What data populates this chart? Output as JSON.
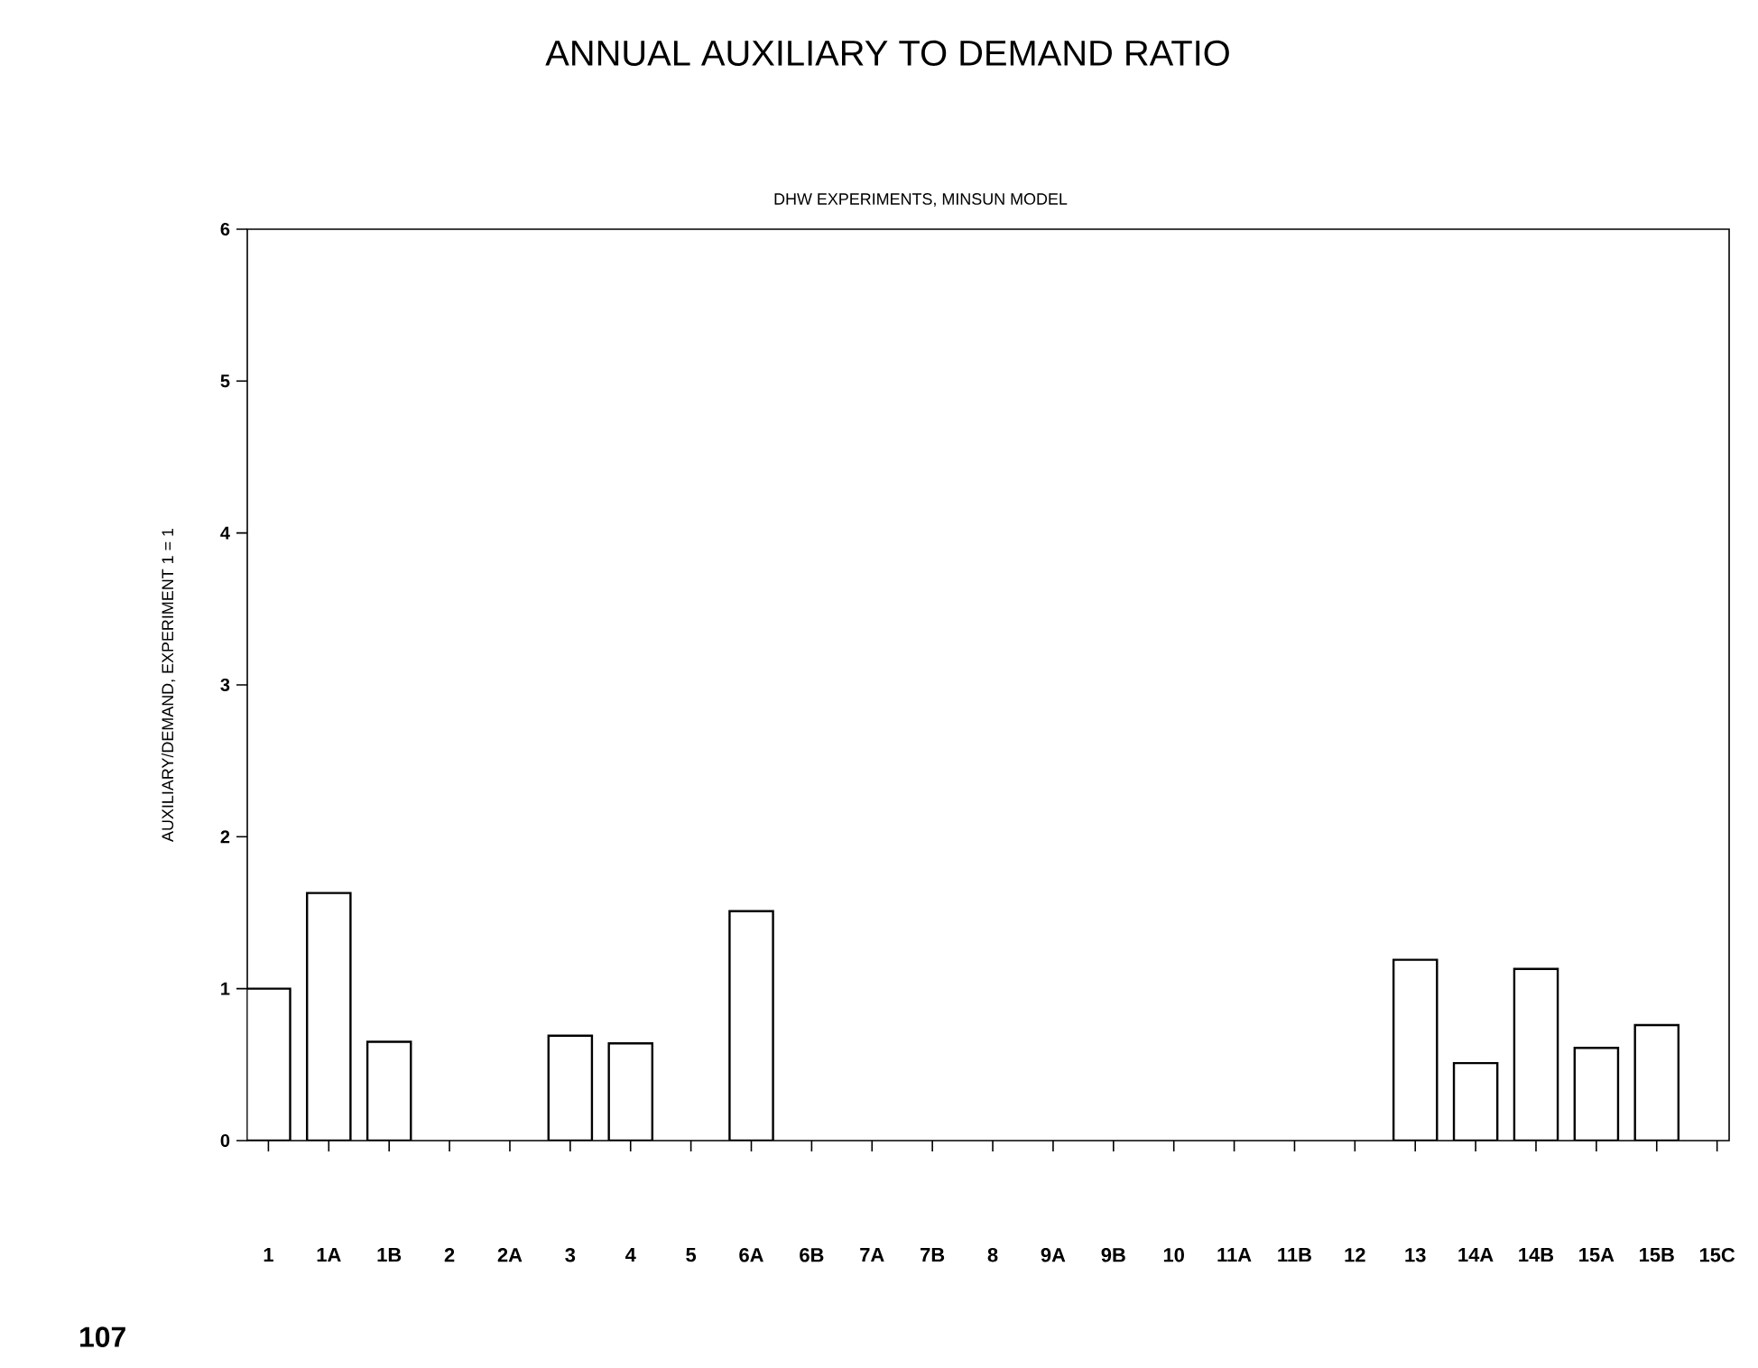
{
  "chart_data": {
    "type": "bar",
    "title": "ANNUAL AUXILIARY TO DEMAND RATIO",
    "subtitle": "DHW EXPERIMENTS, MINSUN MODEL",
    "ylabel": "AUXILIARY/DEMAND,   EXPERIMENT 1 = 1",
    "categories": [
      "1",
      "1A",
      "1B",
      "2",
      "2A",
      "3",
      "4",
      "5",
      "6A",
      "6B",
      "7A",
      "7B",
      "8",
      "9A",
      "9B",
      "10",
      "11A",
      "11B",
      "12",
      "13",
      "14A",
      "14B",
      "15A",
      "15B",
      "15C"
    ],
    "values": [
      1.0,
      1.63,
      0.65,
      null,
      null,
      0.69,
      0.64,
      null,
      1.51,
      null,
      null,
      null,
      null,
      null,
      null,
      null,
      null,
      null,
      null,
      1.19,
      0.51,
      1.13,
      0.61,
      0.76,
      null
    ],
    "color": "#ffffff",
    "ylim": [
      0,
      6
    ],
    "yticks": [
      0,
      1,
      2,
      3,
      4,
      5,
      6
    ],
    "annotations": [
      "107"
    ]
  }
}
